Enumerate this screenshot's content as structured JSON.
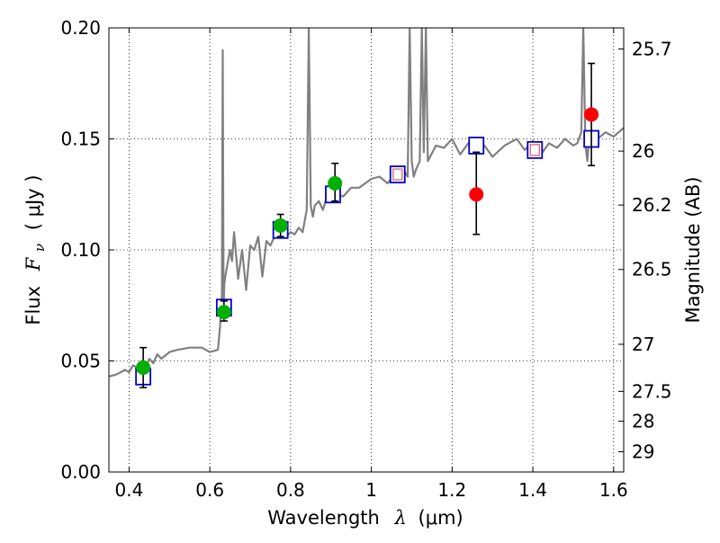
{
  "chart_data": {
    "type": "scatter",
    "xlabel_text": "Wavelength",
    "xlabel_symbol": "λ",
    "xlabel_unit": "(μm)",
    "ylabel_left_text": "Flux",
    "ylabel_left_symbol": "F",
    "ylabel_left_subscript": "ν",
    "ylabel_left_unit": "( μJy )",
    "ylabel_right": "Magnitude (AB)",
    "xlim": [
      0.35,
      1.625
    ],
    "ylim": [
      0.0,
      0.2
    ],
    "grid": true,
    "x_ticks": [
      {
        "value": 0.4,
        "label": "0.4"
      },
      {
        "value": 0.6,
        "label": "0.6"
      },
      {
        "value": 0.8,
        "label": "0.8"
      },
      {
        "value": 1.0,
        "label": "1"
      },
      {
        "value": 1.2,
        "label": "1.2"
      },
      {
        "value": 1.4,
        "label": "1.4"
      },
      {
        "value": 1.6,
        "label": "1.6"
      }
    ],
    "y_ticks": [
      {
        "value": 0.0,
        "label": "0.00"
      },
      {
        "value": 0.05,
        "label": "0.05"
      },
      {
        "value": 0.1,
        "label": "0.10"
      },
      {
        "value": 0.15,
        "label": "0.15"
      },
      {
        "value": 0.2,
        "label": "0.20"
      }
    ],
    "right_ticks": [
      {
        "flux": 0.1905,
        "label": "25.7"
      },
      {
        "flux": 0.1445,
        "label": "26"
      },
      {
        "flux": 0.1202,
        "label": "26.2"
      },
      {
        "flux": 0.0912,
        "label": "26.5"
      },
      {
        "flux": 0.0575,
        "label": "27"
      },
      {
        "flux": 0.0363,
        "label": "27.5"
      },
      {
        "flux": 0.0229,
        "label": "28"
      },
      {
        "flux": 0.0091,
        "label": "29"
      }
    ],
    "colors": {
      "spectrum": "#808080",
      "green_points": "#00b000",
      "red_points": "#ff0000",
      "model_boxes": "#0000cc",
      "inner_boxes": "#e07070",
      "errorbars": "#000000"
    },
    "spectrum": {
      "x": [
        0.35,
        0.37,
        0.39,
        0.4,
        0.41,
        0.42,
        0.43,
        0.44,
        0.45,
        0.46,
        0.47,
        0.48,
        0.5,
        0.52,
        0.55,
        0.58,
        0.6,
        0.62,
        0.625,
        0.63,
        0.632,
        0.634,
        0.636,
        0.64,
        0.65,
        0.655,
        0.66,
        0.67,
        0.68,
        0.69,
        0.7,
        0.71,
        0.72,
        0.73,
        0.74,
        0.75,
        0.76,
        0.77,
        0.78,
        0.79,
        0.8,
        0.81,
        0.82,
        0.83,
        0.84,
        0.845,
        0.85,
        0.855,
        0.86,
        0.87,
        0.88,
        0.89,
        0.9,
        0.91,
        0.92,
        0.93,
        0.95,
        0.97,
        1.0,
        1.02,
        1.04,
        1.06,
        1.08,
        1.09,
        1.095,
        1.1,
        1.105,
        1.11,
        1.12,
        1.125,
        1.13,
        1.135,
        1.14,
        1.16,
        1.18,
        1.2,
        1.22,
        1.24,
        1.26,
        1.28,
        1.3,
        1.33,
        1.36,
        1.38,
        1.4,
        1.42,
        1.44,
        1.46,
        1.48,
        1.5,
        1.51,
        1.52,
        1.525,
        1.53,
        1.535,
        1.54,
        1.56,
        1.58,
        1.6,
        1.625
      ],
      "y": [
        0.043,
        0.044,
        0.046,
        0.045,
        0.048,
        0.047,
        0.05,
        0.046,
        0.051,
        0.049,
        0.053,
        0.051,
        0.054,
        0.055,
        0.056,
        0.056,
        0.054,
        0.055,
        0.065,
        0.08,
        0.19,
        0.074,
        0.085,
        0.09,
        0.1,
        0.095,
        0.108,
        0.087,
        0.1,
        0.082,
        0.102,
        0.1,
        0.106,
        0.088,
        0.104,
        0.102,
        0.106,
        0.108,
        0.107,
        0.106,
        0.108,
        0.107,
        0.11,
        0.108,
        0.118,
        0.2,
        0.12,
        0.115,
        0.12,
        0.122,
        0.118,
        0.124,
        0.125,
        0.122,
        0.125,
        0.124,
        0.128,
        0.128,
        0.132,
        0.133,
        0.13,
        0.134,
        0.136,
        0.133,
        0.2,
        0.14,
        0.133,
        0.136,
        0.14,
        0.2,
        0.144,
        0.2,
        0.14,
        0.147,
        0.146,
        0.15,
        0.143,
        0.148,
        0.145,
        0.147,
        0.142,
        0.147,
        0.15,
        0.145,
        0.149,
        0.143,
        0.148,
        0.146,
        0.15,
        0.147,
        0.148,
        0.153,
        0.2,
        0.148,
        0.14,
        0.152,
        0.15,
        0.153,
        0.151,
        0.155
      ]
    },
    "model_boxes": {
      "x": [
        0.435,
        0.635,
        0.775,
        0.905,
        1.065,
        1.26,
        1.405,
        1.545
      ],
      "y": [
        0.043,
        0.074,
        0.109,
        0.125,
        0.134,
        0.147,
        0.145,
        0.15
      ]
    },
    "inner_boxes": {
      "x": [
        1.065,
        1.405
      ],
      "y": [
        0.134,
        0.145
      ]
    },
    "green_points": {
      "x": [
        0.435,
        0.635,
        0.775,
        0.91
      ],
      "y": [
        0.047,
        0.072,
        0.111,
        0.13
      ],
      "err_low": [
        0.038,
        0.068,
        0.106,
        0.122
      ],
      "err_high": [
        0.056,
        0.077,
        0.116,
        0.139
      ]
    },
    "red_points": {
      "x": [
        1.26,
        1.545
      ],
      "y": [
        0.125,
        0.161
      ],
      "err_low": [
        0.107,
        0.138
      ],
      "err_high": [
        0.144,
        0.184
      ]
    }
  }
}
